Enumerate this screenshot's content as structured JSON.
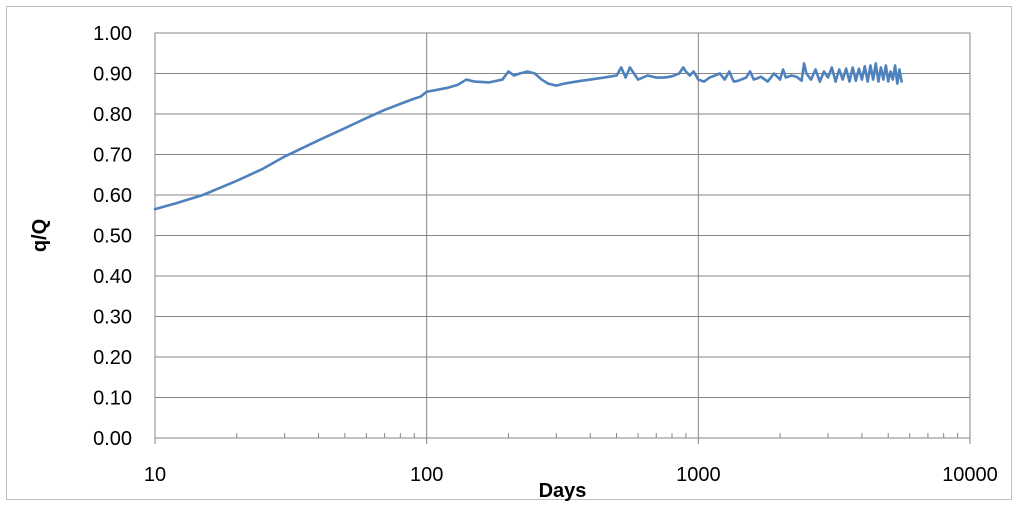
{
  "chart_data": {
    "type": "line",
    "title": "",
    "xlabel": "Days",
    "ylabel": "q/Q",
    "x_scale": "log",
    "xlim": [
      10,
      10000
    ],
    "ylim": [
      0,
      1
    ],
    "x_ticks": [
      "10",
      "100",
      "1000",
      "10000"
    ],
    "y_ticks": [
      "0.00",
      "0.10",
      "0.20",
      "0.30",
      "0.40",
      "0.50",
      "0.60",
      "0.70",
      "0.80",
      "0.90",
      "1.00"
    ],
    "grid": true,
    "legend": "none",
    "line_color": "#4f81bd",
    "series": [
      {
        "x": [
          10,
          12,
          15,
          20,
          25,
          30,
          40,
          50,
          60,
          70,
          80,
          90,
          95,
          100,
          110,
          120,
          130,
          140,
          150,
          170,
          190,
          200,
          210,
          220,
          235,
          250,
          265,
          280,
          300,
          320,
          340,
          370,
          400,
          450,
          500,
          520,
          540,
          560,
          600,
          650,
          700,
          750,
          800,
          850,
          880,
          900,
          930,
          960,
          1000,
          1050,
          1100,
          1150,
          1200,
          1250,
          1300,
          1350,
          1400,
          1500,
          1550,
          1600,
          1650,
          1700,
          1800,
          1900,
          2000,
          2050,
          2100,
          2200,
          2300,
          2400,
          2450,
          2500,
          2600,
          2700,
          2800,
          2900,
          3000,
          3100,
          3200,
          3300,
          3400,
          3500,
          3600,
          3700,
          3800,
          3900,
          4000,
          4100,
          4200,
          4300,
          4400,
          4500,
          4600,
          4700,
          4800,
          4900,
          5000,
          5100,
          5200,
          5300,
          5400,
          5500,
          5600
        ],
        "y": [
          0.565,
          0.58,
          0.6,
          0.635,
          0.665,
          0.695,
          0.735,
          0.765,
          0.79,
          0.81,
          0.825,
          0.838,
          0.843,
          0.855,
          0.86,
          0.865,
          0.872,
          0.885,
          0.88,
          0.878,
          0.885,
          0.905,
          0.895,
          0.9,
          0.905,
          0.9,
          0.885,
          0.875,
          0.87,
          0.875,
          0.878,
          0.882,
          0.885,
          0.89,
          0.895,
          0.915,
          0.89,
          0.915,
          0.885,
          0.895,
          0.89,
          0.89,
          0.893,
          0.9,
          0.915,
          0.905,
          0.895,
          0.905,
          0.885,
          0.88,
          0.89,
          0.895,
          0.9,
          0.885,
          0.905,
          0.88,
          0.882,
          0.89,
          0.905,
          0.885,
          0.888,
          0.892,
          0.88,
          0.9,
          0.885,
          0.91,
          0.89,
          0.895,
          0.892,
          0.882,
          0.925,
          0.9,
          0.885,
          0.91,
          0.88,
          0.905,
          0.89,
          0.915,
          0.88,
          0.91,
          0.885,
          0.912,
          0.88,
          0.915,
          0.882,
          0.912,
          0.885,
          0.918,
          0.88,
          0.92,
          0.885,
          0.925,
          0.88,
          0.915,
          0.885,
          0.92,
          0.88,
          0.905,
          0.885,
          0.92,
          0.875,
          0.91,
          0.88
        ]
      }
    ]
  }
}
